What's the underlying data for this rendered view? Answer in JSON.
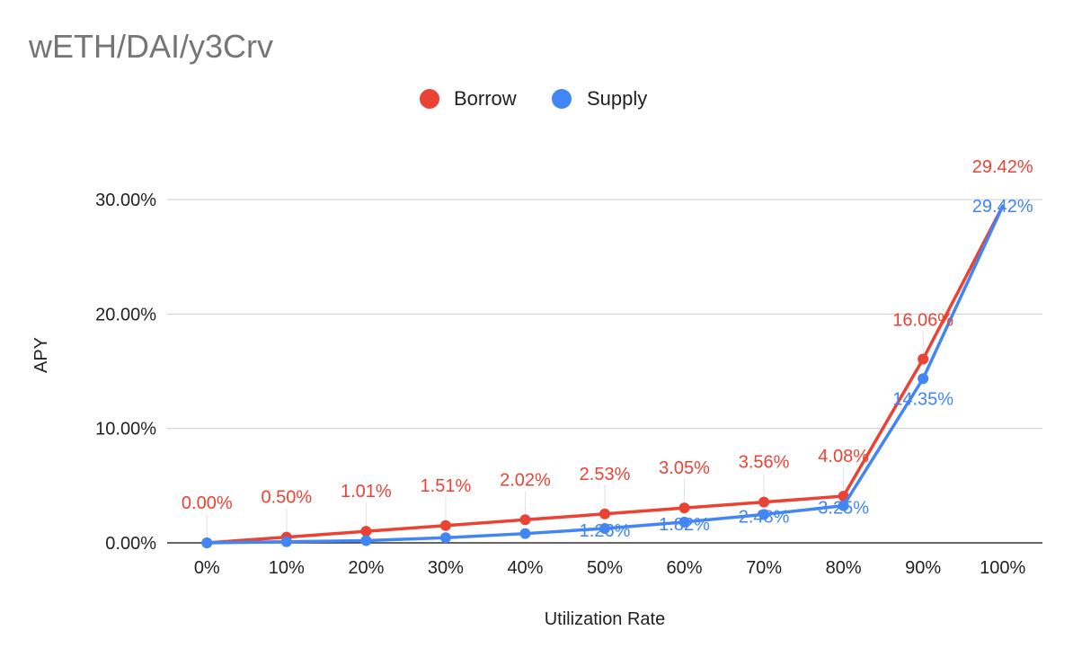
{
  "chart_data": {
    "type": "line",
    "title": "wETH/DAI/y3Crv",
    "xlabel": "Utilization Rate",
    "ylabel": "APY",
    "categories": [
      "0%",
      "10%",
      "20%",
      "30%",
      "40%",
      "50%",
      "60%",
      "70%",
      "80%",
      "90%",
      "100%"
    ],
    "ylim": [
      0,
      30
    ],
    "yticks": [
      {
        "value": 0,
        "label": "0.00%"
      },
      {
        "value": 10,
        "label": "10.00%"
      },
      {
        "value": 20,
        "label": "20.00%"
      },
      {
        "value": 30,
        "label": "30.00%"
      }
    ],
    "grid": true,
    "legend_position": "top",
    "series": [
      {
        "name": "Borrow",
        "color": "#EA4335",
        "values": [
          0.0,
          0.5,
          1.01,
          1.51,
          2.02,
          2.53,
          3.05,
          3.56,
          4.08,
          16.06,
          29.42
        ],
        "labels": [
          "0.00%",
          "0.50%",
          "1.01%",
          "1.51%",
          "2.02%",
          "2.53%",
          "3.05%",
          "3.56%",
          "4.08%",
          "16.06%",
          "29.42%"
        ]
      },
      {
        "name": "Supply",
        "color": "#4285F4",
        "values": [
          0.0,
          0.1,
          0.2,
          0.45,
          0.81,
          1.26,
          1.82,
          2.48,
          3.25,
          14.35,
          29.42
        ],
        "labels": [
          null,
          null,
          null,
          null,
          null,
          "1.26%",
          "1.82%",
          "2.48%",
          "3.25%",
          "14.35%",
          "29.42%"
        ]
      }
    ]
  }
}
